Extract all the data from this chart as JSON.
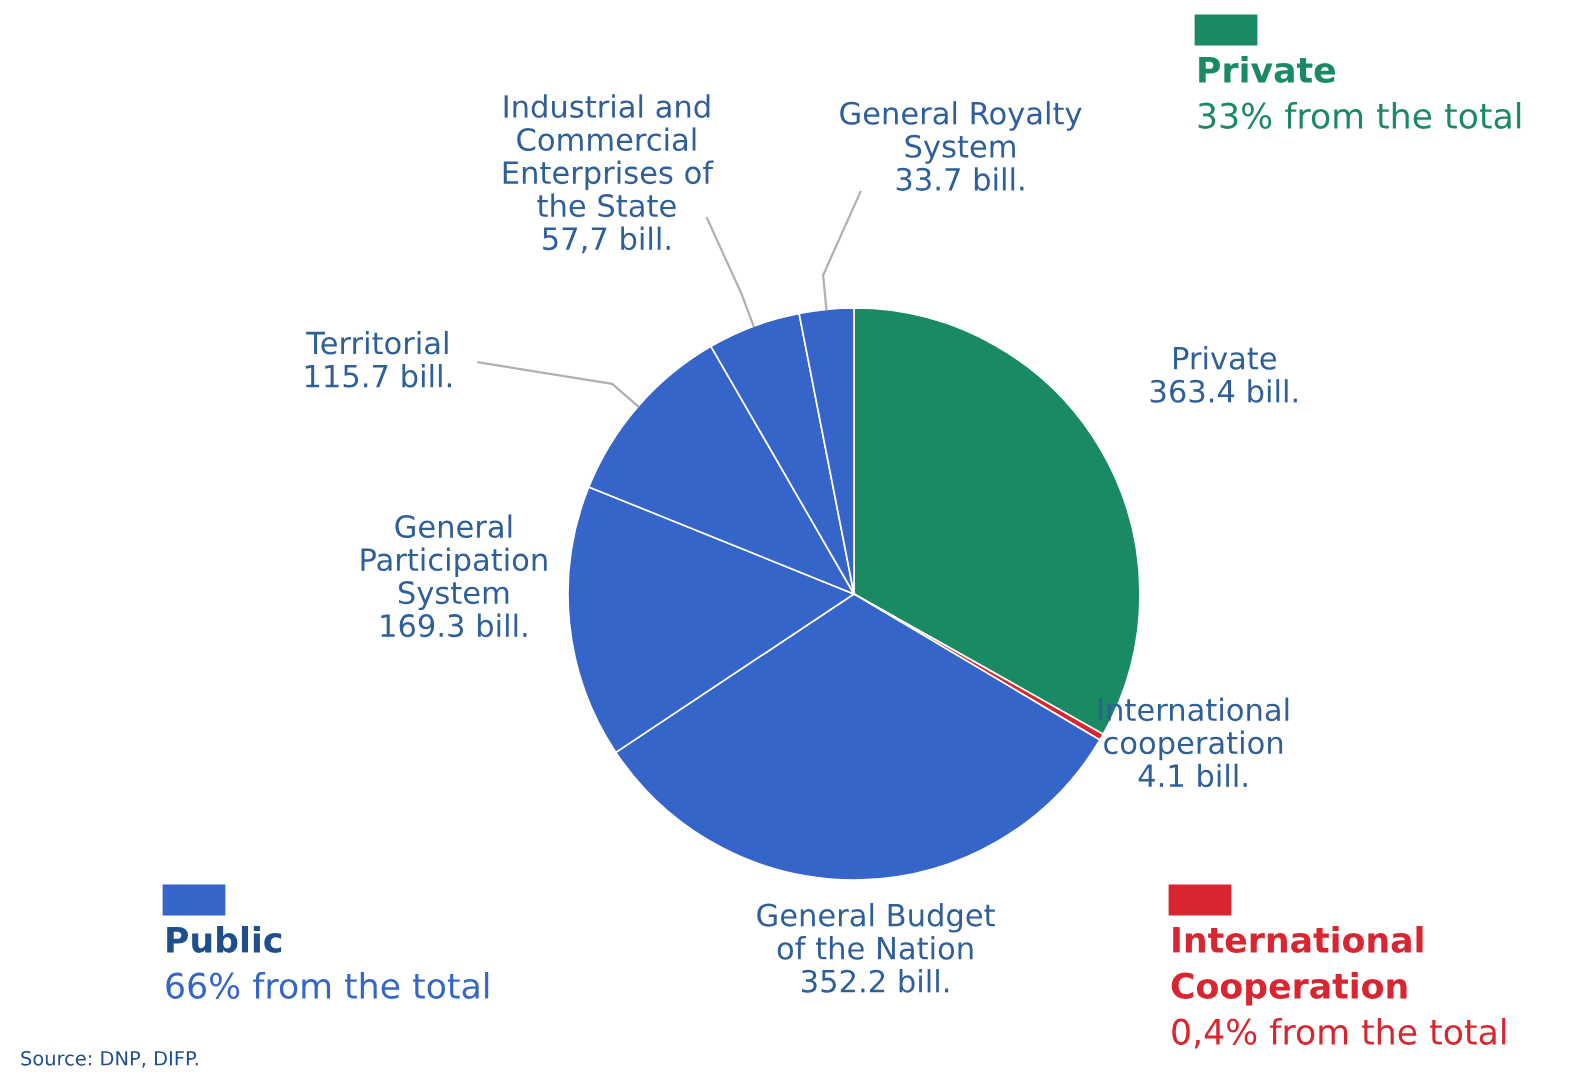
{
  "chart_data": {
    "type": "pie",
    "categories": [
      "Private",
      "International\ncooperation",
      "General Budget\nof the Nation",
      "General\nParticipation\nSystem",
      "Territorial",
      "Industrial and\nCommercial\nEnterprises of\nthe State",
      "General Royalty\nSystem"
    ],
    "values": [
      363.4,
      4.1,
      352.2,
      169.3,
      115.7,
      57.7,
      33.7
    ],
    "value_labels": [
      "363.4 bill.",
      "4.1 bill.",
      "352.2 bill.",
      "169.3 bill.",
      "115.7 bill.",
      "57,7 bill.",
      "33.7 bill."
    ],
    "colors": [
      "#1a8a62",
      "#d9252f",
      "#3565c8",
      "#3565c8",
      "#3565c8",
      "#3565c8",
      "#3565c8"
    ],
    "annotations": [
      "Private\n33% from the total",
      "Public\n66% from the total",
      "International\nCooperation\n0,4% from the total",
      "Source: DNP, DIFP."
    ],
    "legend": false
  }
}
